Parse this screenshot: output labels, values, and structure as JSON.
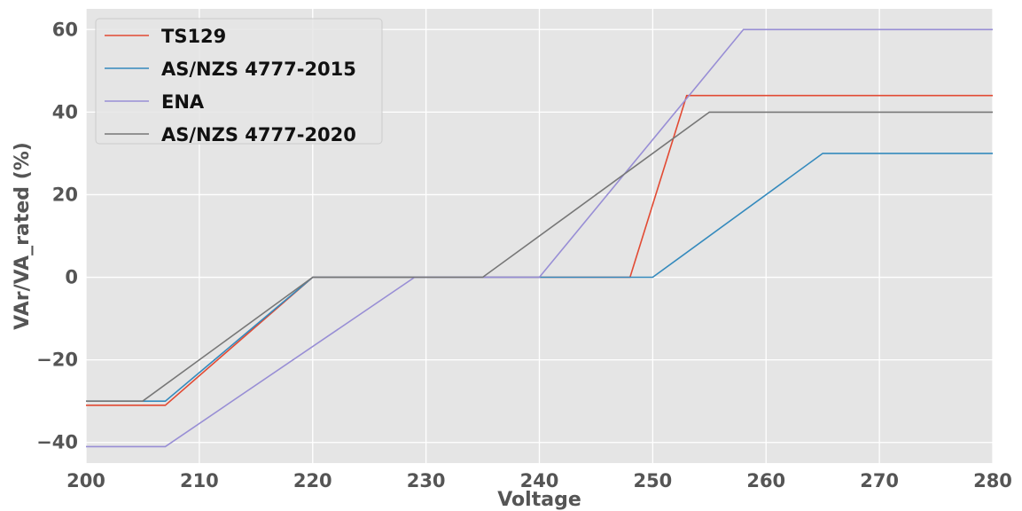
{
  "chart_data": {
    "type": "line",
    "title": "",
    "xlabel": "Voltage",
    "ylabel": "VAr/VA_rated (%)",
    "xlim": [
      200,
      280
    ],
    "ylim": [
      -45,
      65
    ],
    "xticks": [
      200,
      210,
      220,
      230,
      240,
      250,
      260,
      270,
      280
    ],
    "yticks": [
      -40,
      -20,
      0,
      20,
      40,
      60
    ],
    "xtick_labels": [
      "200",
      "210",
      "220",
      "230",
      "240",
      "250",
      "260",
      "270",
      "280"
    ],
    "ytick_labels": [
      "−40",
      "−20",
      "0",
      "20",
      "40",
      "60"
    ],
    "grid": true,
    "legend_position": "top-left",
    "background": "#e5e5e5",
    "series": [
      {
        "name": "TS129",
        "color": "#e24a33",
        "x": [
          200,
          207,
          220,
          235,
          248,
          253,
          280
        ],
        "y": [
          -31,
          -31,
          0,
          0,
          0,
          44,
          44
        ]
      },
      {
        "name": "AS/NZS 4777-2015",
        "color": "#348abd",
        "x": [
          200,
          207,
          220,
          235,
          250,
          265,
          280
        ],
        "y": [
          -30,
          -30,
          0,
          0,
          0,
          30,
          30
        ]
      },
      {
        "name": "ENA",
        "color": "#988ed5",
        "x": [
          200,
          207,
          229,
          235,
          240,
          258,
          280
        ],
        "y": [
          -41,
          -41,
          0,
          0,
          0,
          60,
          60
        ]
      },
      {
        "name": "AS/NZS 4777-2020",
        "color": "#777777",
        "x": [
          200,
          205,
          220,
          235,
          255,
          280
        ],
        "y": [
          -30,
          -30,
          0,
          0,
          40,
          40
        ]
      }
    ]
  }
}
